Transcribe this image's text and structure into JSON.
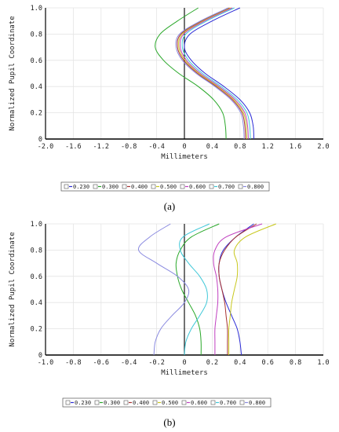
{
  "chart_data": [
    {
      "type": "line",
      "caption": "(a)",
      "xlabel": "Millimeters",
      "ylabel": "Normalized Pupil Coordinate",
      "xlim": [
        -2.0,
        2.0
      ],
      "ylim": [
        0,
        1.0
      ],
      "xticks": [
        "-2.0",
        "-1.6",
        "-1.2",
        "-0.8",
        "-0.4",
        "0",
        "0.4",
        "0.8",
        "1.2",
        "1.6",
        "2.0"
      ],
      "yticks": [
        "0",
        "0.2",
        "0.4",
        "0.6",
        "0.8",
        "1.0"
      ],
      "grid": true,
      "legend_position": "bottom",
      "series": [
        {
          "name": "0.230",
          "color": "#2b2bd6",
          "x": [
            1.0,
            0.99,
            0.94,
            0.8,
            0.57,
            0.3,
            0.1,
            0.0,
            0.08,
            0.4,
            0.8
          ],
          "y": [
            0,
            0.1,
            0.2,
            0.3,
            0.4,
            0.5,
            0.6,
            0.7,
            0.8,
            0.9,
            1.0
          ]
        },
        {
          "name": "0.300",
          "color": "#2aa82a",
          "x": [
            0.6,
            0.59,
            0.55,
            0.42,
            0.2,
            -0.08,
            -0.3,
            -0.42,
            -0.35,
            -0.1,
            0.2
          ],
          "y": [
            0,
            0.1,
            0.2,
            0.3,
            0.4,
            0.5,
            0.6,
            0.7,
            0.8,
            0.9,
            1.0
          ]
        },
        {
          "name": "0.400",
          "color": "#a83232",
          "x": [
            0.88,
            0.87,
            0.83,
            0.69,
            0.46,
            0.19,
            -0.01,
            -0.1,
            -0.05,
            0.25,
            0.65
          ],
          "y": [
            0,
            0.1,
            0.2,
            0.3,
            0.4,
            0.5,
            0.6,
            0.7,
            0.8,
            0.9,
            1.0
          ]
        },
        {
          "name": "0.500",
          "color": "#c8c81e",
          "x": [
            0.9,
            0.89,
            0.85,
            0.71,
            0.48,
            0.21,
            0.01,
            -0.08,
            -0.03,
            0.27,
            0.67
          ],
          "y": [
            0,
            0.1,
            0.2,
            0.3,
            0.4,
            0.5,
            0.6,
            0.7,
            0.8,
            0.9,
            1.0
          ]
        },
        {
          "name": "0.600",
          "color": "#c040c0",
          "x": [
            0.92,
            0.91,
            0.87,
            0.73,
            0.5,
            0.23,
            0.03,
            -0.06,
            -0.01,
            0.29,
            0.69
          ],
          "y": [
            0,
            0.1,
            0.2,
            0.3,
            0.4,
            0.5,
            0.6,
            0.7,
            0.8,
            0.9,
            1.0
          ]
        },
        {
          "name": "0.700",
          "color": "#40c8d8",
          "x": [
            0.95,
            0.94,
            0.9,
            0.76,
            0.53,
            0.26,
            0.06,
            -0.03,
            0.02,
            0.32,
            0.72
          ],
          "y": [
            0,
            0.1,
            0.2,
            0.3,
            0.4,
            0.5,
            0.6,
            0.7,
            0.8,
            0.9,
            1.0
          ]
        },
        {
          "name": "0.800",
          "color": "#8a8ae0",
          "x": [
            0.86,
            0.85,
            0.81,
            0.67,
            0.44,
            0.17,
            -0.03,
            -0.12,
            -0.07,
            0.23,
            0.63
          ],
          "y": [
            0,
            0.1,
            0.2,
            0.3,
            0.4,
            0.5,
            0.6,
            0.7,
            0.8,
            0.9,
            1.0
          ]
        }
      ]
    },
    {
      "type": "line",
      "caption": "(b)",
      "xlabel": "Millimeters",
      "ylabel": "Normalized Pupil Coordinate",
      "xlim": [
        -1.0,
        1.0
      ],
      "ylim": [
        0,
        1.0
      ],
      "xticks": [
        "-1.0",
        "-0.8",
        "-0.6",
        "-0.4",
        "-0.2",
        "0",
        "0.2",
        "0.4",
        "0.6",
        "0.8",
        "1.0"
      ],
      "yticks": [
        "0",
        "0.2",
        "0.4",
        "0.6",
        "0.8",
        "1.0"
      ],
      "grid": true,
      "legend_position": "bottom",
      "series": [
        {
          "name": "0.230",
          "color": "#2b2bd6",
          "x": [
            0.41,
            0.4,
            0.38,
            0.34,
            0.3,
            0.27,
            0.25,
            0.25,
            0.28,
            0.37,
            0.5
          ],
          "y": [
            0,
            0.1,
            0.2,
            0.3,
            0.4,
            0.5,
            0.6,
            0.7,
            0.8,
            0.9,
            1.0
          ]
        },
        {
          "name": "0.300",
          "color": "#2aa82a",
          "x": [
            0.12,
            0.12,
            0.11,
            0.08,
            0.03,
            -0.02,
            -0.05,
            -0.06,
            -0.03,
            0.05,
            0.25
          ],
          "y": [
            0,
            0.1,
            0.2,
            0.3,
            0.4,
            0.5,
            0.6,
            0.7,
            0.8,
            0.9,
            1.0
          ]
        },
        {
          "name": "0.400",
          "color": "#a83232",
          "x": [
            0.31,
            0.31,
            0.31,
            0.3,
            0.29,
            0.27,
            0.25,
            0.25,
            0.29,
            0.37,
            0.52
          ],
          "y": [
            0,
            0.1,
            0.2,
            0.3,
            0.4,
            0.5,
            0.6,
            0.7,
            0.8,
            0.9,
            1.0
          ]
        },
        {
          "name": "0.500",
          "color": "#c8c81e",
          "x": [
            0.32,
            0.32,
            0.32,
            0.33,
            0.34,
            0.36,
            0.38,
            0.38,
            0.36,
            0.44,
            0.66
          ],
          "y": [
            0,
            0.1,
            0.2,
            0.3,
            0.4,
            0.5,
            0.6,
            0.7,
            0.8,
            0.9,
            1.0
          ]
        },
        {
          "name": "0.600",
          "color": "#c040c0",
          "x": [
            0.22,
            0.22,
            0.22,
            0.23,
            0.24,
            0.24,
            0.23,
            0.21,
            0.22,
            0.3,
            0.56
          ],
          "y": [
            0,
            0.1,
            0.2,
            0.3,
            0.4,
            0.5,
            0.6,
            0.7,
            0.8,
            0.9,
            1.0
          ]
        },
        {
          "name": "0.700",
          "color": "#40c8d8",
          "x": [
            0.0,
            0.01,
            0.05,
            0.11,
            0.16,
            0.16,
            0.11,
            0.03,
            -0.03,
            -0.01,
            0.18
          ],
          "y": [
            0,
            0.1,
            0.2,
            0.3,
            0.4,
            0.5,
            0.6,
            0.7,
            0.8,
            0.9,
            1.0
          ]
        },
        {
          "name": "0.800",
          "color": "#8a8ae0",
          "x": [
            -0.22,
            -0.21,
            -0.17,
            -0.09,
            0.0,
            0.03,
            -0.05,
            -0.2,
            -0.33,
            -0.25,
            -0.1
          ],
          "y": [
            0,
            0.1,
            0.2,
            0.3,
            0.4,
            0.5,
            0.6,
            0.7,
            0.8,
            0.9,
            1.0
          ]
        }
      ]
    }
  ]
}
